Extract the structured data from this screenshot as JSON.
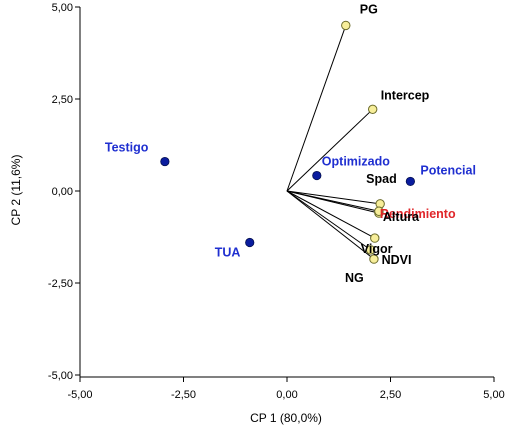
{
  "chart_data": {
    "type": "scatter",
    "title": "",
    "xlabel": "CP 1 (80,0%)",
    "ylabel": "CP 2 (11,6%)",
    "xlim": [
      -5,
      5
    ],
    "ylim": [
      -5,
      5
    ],
    "x_ticks": [
      "-5,00",
      "-2,50",
      "0,00",
      "2,50",
      "5,00"
    ],
    "y_ticks": [
      "5,00",
      "2,50",
      "0,00",
      "-2,50",
      "-5,00"
    ],
    "x_tick_values": [
      -5,
      -2.5,
      0,
      2.5,
      5
    ],
    "y_tick_values": [
      5,
      2.5,
      0,
      -2.5,
      -5
    ],
    "grid": false,
    "colors": {
      "treatment": "#0a1c9e",
      "variable": "#f7ee9a",
      "variable_outline": "#6b6b2a",
      "label_blue": "#1f2fd0",
      "label_red": "#e0262a",
      "label_black": "#000000"
    },
    "treatments": [
      {
        "label": "Testigo",
        "x": -2.95,
        "y": 0.8
      },
      {
        "label": "TUA",
        "x": -0.9,
        "y": -1.4
      },
      {
        "label": "Optimizado",
        "x": 0.72,
        "y": 0.42
      },
      {
        "label": "Potencial",
        "x": 2.98,
        "y": 0.26
      }
    ],
    "variables": [
      {
        "label": "PG",
        "x": 1.42,
        "y": 4.5
      },
      {
        "label": "Intercep",
        "x": 2.07,
        "y": 2.22
      },
      {
        "label": "Spad",
        "x": 2.25,
        "y": -0.35
      },
      {
        "label": "Rendimiento",
        "x": 2.22,
        "y": -0.6,
        "highlight": true
      },
      {
        "label": "Vigor",
        "x": 2.12,
        "y": -1.28
      },
      {
        "label": "NDVI",
        "x": 2.02,
        "y": -1.6
      },
      {
        "label": "NG",
        "x": 2.1,
        "y": -1.85
      },
      {
        "label": "Altura",
        "x": 2.22,
        "y": -0.55
      }
    ]
  }
}
